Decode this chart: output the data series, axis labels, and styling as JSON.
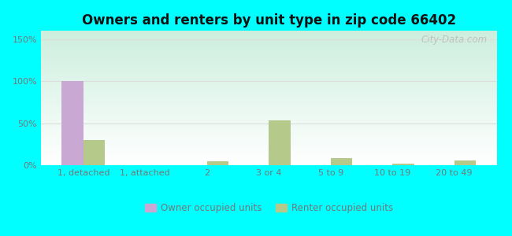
{
  "title": "Owners and renters by unit type in zip code 66402",
  "categories": [
    "1, detached",
    "1, attached",
    "2",
    "3 or 4",
    "5 to 9",
    "10 to 19",
    "20 to 49"
  ],
  "owner_values": [
    100,
    0,
    0,
    0,
    0,
    0,
    0
  ],
  "renter_values": [
    30,
    0,
    5,
    53,
    8,
    2,
    6
  ],
  "owner_color": "#c9a8d4",
  "renter_color": "#b5c98a",
  "bar_width": 0.35,
  "ylim": [
    0,
    160
  ],
  "yticks": [
    0,
    50,
    100,
    150
  ],
  "ytick_labels": [
    "0%",
    "50%",
    "100%",
    "150%"
  ],
  "legend_owner": "Owner occupied units",
  "legend_renter": "Renter occupied units",
  "title_fontsize": 12,
  "background_outer": "#00ffff",
  "grad_top_color": "#cceedd",
  "grad_bot_color": "#ffffff",
  "watermark": "City-Data.com",
  "tick_color": "#777777",
  "grid_color": "#dddddd"
}
